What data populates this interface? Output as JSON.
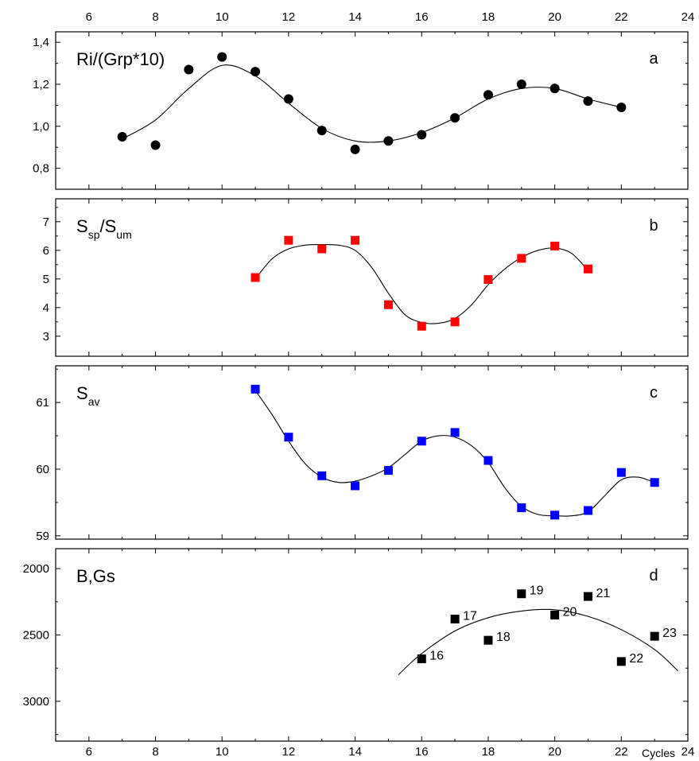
{
  "chart_data": {
    "type": "scatter",
    "x_axis": {
      "range": [
        5,
        24
      ],
      "ticks": [
        6,
        8,
        10,
        12,
        14,
        16,
        18,
        20,
        22,
        24
      ],
      "label": "Cycles",
      "top_ticks_labeled": true,
      "bottom_ticks_labeled": true
    },
    "panels": [
      {
        "id": "a",
        "letter": "a",
        "title": "Ri/(Grp*10)",
        "title_sub": "",
        "title_tail": "",
        "ylim": [
          0.7,
          1.45
        ],
        "y_inverted": false,
        "y_ticks": [
          0.8,
          1.0,
          1.2,
          1.4
        ],
        "y_tick_labels": [
          "0,8",
          "1,0",
          "1,2",
          "1,4"
        ],
        "marker": "circle",
        "color": "#000000",
        "points": [
          {
            "x": 7,
            "y": 0.95
          },
          {
            "x": 8,
            "y": 0.91
          },
          {
            "x": 9,
            "y": 1.27
          },
          {
            "x": 10,
            "y": 1.33
          },
          {
            "x": 11,
            "y": 1.26
          },
          {
            "x": 12,
            "y": 1.13
          },
          {
            "x": 13,
            "y": 0.98
          },
          {
            "x": 14,
            "y": 0.89
          },
          {
            "x": 15,
            "y": 0.93
          },
          {
            "x": 16,
            "y": 0.96
          },
          {
            "x": 17,
            "y": 1.04
          },
          {
            "x": 18,
            "y": 1.15
          },
          {
            "x": 19,
            "y": 1.2
          },
          {
            "x": 20,
            "y": 1.18
          },
          {
            "x": 21,
            "y": 1.12
          },
          {
            "x": 22,
            "y": 1.09
          }
        ],
        "fit": [
          {
            "x": 7,
            "y": 0.94
          },
          {
            "x": 8,
            "y": 1.03
          },
          {
            "x": 9,
            "y": 1.18
          },
          {
            "x": 10,
            "y": 1.29
          },
          {
            "x": 11,
            "y": 1.24
          },
          {
            "x": 12,
            "y": 1.11
          },
          {
            "x": 13,
            "y": 0.99
          },
          {
            "x": 14,
            "y": 0.93
          },
          {
            "x": 15,
            "y": 0.93
          },
          {
            "x": 16,
            "y": 0.97
          },
          {
            "x": 17,
            "y": 1.04
          },
          {
            "x": 18,
            "y": 1.13
          },
          {
            "x": 19,
            "y": 1.18
          },
          {
            "x": 20,
            "y": 1.18
          },
          {
            "x": 21,
            "y": 1.13
          },
          {
            "x": 22,
            "y": 1.09
          }
        ]
      },
      {
        "id": "b",
        "letter": "b",
        "title": "S",
        "title_sub": "sp",
        "title_tail": "/S",
        "title_sub2": "um",
        "ylim": [
          2.3,
          7.8
        ],
        "y_inverted": false,
        "y_ticks": [
          3,
          4,
          5,
          6,
          7
        ],
        "y_tick_labels": [
          "3",
          "4",
          "5",
          "6",
          "7"
        ],
        "marker": "square",
        "color": "#ff0000",
        "points": [
          {
            "x": 11,
            "y": 5.05
          },
          {
            "x": 12,
            "y": 6.35
          },
          {
            "x": 13,
            "y": 6.05
          },
          {
            "x": 14,
            "y": 6.35
          },
          {
            "x": 15,
            "y": 4.1
          },
          {
            "x": 16,
            "y": 3.35
          },
          {
            "x": 17,
            "y": 3.5
          },
          {
            "x": 18,
            "y": 4.98
          },
          {
            "x": 19,
            "y": 5.72
          },
          {
            "x": 20,
            "y": 6.15
          },
          {
            "x": 21,
            "y": 5.35
          }
        ],
        "fit": [
          {
            "x": 11,
            "y": 5.0
          },
          {
            "x": 11.5,
            "y": 5.7
          },
          {
            "x": 12,
            "y": 6.05
          },
          {
            "x": 12.5,
            "y": 6.18
          },
          {
            "x": 13,
            "y": 6.2
          },
          {
            "x": 13.5,
            "y": 6.18
          },
          {
            "x": 14,
            "y": 6.0
          },
          {
            "x": 14.5,
            "y": 5.4
          },
          {
            "x": 15,
            "y": 4.5
          },
          {
            "x": 15.5,
            "y": 3.75
          },
          {
            "x": 16,
            "y": 3.48
          },
          {
            "x": 16.5,
            "y": 3.45
          },
          {
            "x": 17,
            "y": 3.62
          },
          {
            "x": 17.5,
            "y": 4.1
          },
          {
            "x": 18,
            "y": 4.8
          },
          {
            "x": 18.5,
            "y": 5.35
          },
          {
            "x": 19,
            "y": 5.75
          },
          {
            "x": 19.5,
            "y": 6.0
          },
          {
            "x": 20,
            "y": 6.08
          },
          {
            "x": 20.5,
            "y": 5.9
          },
          {
            "x": 21,
            "y": 5.3
          }
        ]
      },
      {
        "id": "c",
        "letter": "c",
        "title": "S",
        "title_sub": "av",
        "title_tail": "",
        "ylim": [
          58.95,
          61.55
        ],
        "y_inverted": false,
        "y_ticks": [
          59,
          60,
          61
        ],
        "y_tick_labels": [
          "59",
          "60",
          "61"
        ],
        "marker": "square",
        "color": "#0000ff",
        "points": [
          {
            "x": 11,
            "y": 61.2
          },
          {
            "x": 12,
            "y": 60.48
          },
          {
            "x": 13,
            "y": 59.9
          },
          {
            "x": 14,
            "y": 59.75
          },
          {
            "x": 15,
            "y": 59.98
          },
          {
            "x": 16,
            "y": 60.42
          },
          {
            "x": 17,
            "y": 60.55
          },
          {
            "x": 18,
            "y": 60.13
          },
          {
            "x": 19,
            "y": 59.42
          },
          {
            "x": 20,
            "y": 59.31
          },
          {
            "x": 21,
            "y": 59.38
          },
          {
            "x": 22,
            "y": 59.95
          },
          {
            "x": 23,
            "y": 59.8
          }
        ],
        "fit": [
          {
            "x": 11,
            "y": 61.18
          },
          {
            "x": 11.5,
            "y": 60.82
          },
          {
            "x": 12,
            "y": 60.42
          },
          {
            "x": 12.5,
            "y": 60.08
          },
          {
            "x": 13,
            "y": 59.88
          },
          {
            "x": 13.5,
            "y": 59.8
          },
          {
            "x": 14,
            "y": 59.82
          },
          {
            "x": 14.5,
            "y": 59.9
          },
          {
            "x": 15,
            "y": 60.02
          },
          {
            "x": 15.5,
            "y": 60.22
          },
          {
            "x": 16,
            "y": 60.42
          },
          {
            "x": 16.5,
            "y": 60.5
          },
          {
            "x": 17,
            "y": 60.48
          },
          {
            "x": 17.5,
            "y": 60.35
          },
          {
            "x": 18,
            "y": 60.1
          },
          {
            "x": 18.5,
            "y": 59.72
          },
          {
            "x": 19,
            "y": 59.44
          },
          {
            "x": 19.5,
            "y": 59.32
          },
          {
            "x": 20,
            "y": 59.3
          },
          {
            "x": 20.5,
            "y": 59.3
          },
          {
            "x": 21,
            "y": 59.36
          },
          {
            "x": 21.5,
            "y": 59.6
          },
          {
            "x": 22,
            "y": 59.84
          },
          {
            "x": 22.5,
            "y": 59.88
          },
          {
            "x": 23,
            "y": 59.8
          }
        ]
      },
      {
        "id": "d",
        "letter": "d",
        "title": "B,Gs",
        "title_sub": "",
        "title_tail": "",
        "ylim": [
          3300,
          1850
        ],
        "y_inverted": true,
        "y_ticks": [
          2000,
          2500,
          3000
        ],
        "y_tick_labels": [
          "2000",
          "2500",
          "3000"
        ],
        "marker": "square",
        "color": "#000000",
        "points": [
          {
            "x": 16,
            "y": 2680,
            "label": "16"
          },
          {
            "x": 17,
            "y": 2380,
            "label": "17"
          },
          {
            "x": 18,
            "y": 2540,
            "label": "18"
          },
          {
            "x": 19,
            "y": 2190,
            "label": "19"
          },
          {
            "x": 20,
            "y": 2350,
            "label": "20"
          },
          {
            "x": 21,
            "y": 2210,
            "label": "21"
          },
          {
            "x": 22,
            "y": 2700,
            "label": "22"
          },
          {
            "x": 23,
            "y": 2510,
            "label": "23"
          }
        ],
        "fit": [
          {
            "x": 15.3,
            "y": 2800
          },
          {
            "x": 16,
            "y": 2640
          },
          {
            "x": 17,
            "y": 2470
          },
          {
            "x": 18,
            "y": 2370
          },
          {
            "x": 19,
            "y": 2320
          },
          {
            "x": 20,
            "y": 2310
          },
          {
            "x": 21,
            "y": 2360
          },
          {
            "x": 22,
            "y": 2460
          },
          {
            "x": 23,
            "y": 2610
          },
          {
            "x": 23.7,
            "y": 2770
          }
        ]
      }
    ]
  }
}
